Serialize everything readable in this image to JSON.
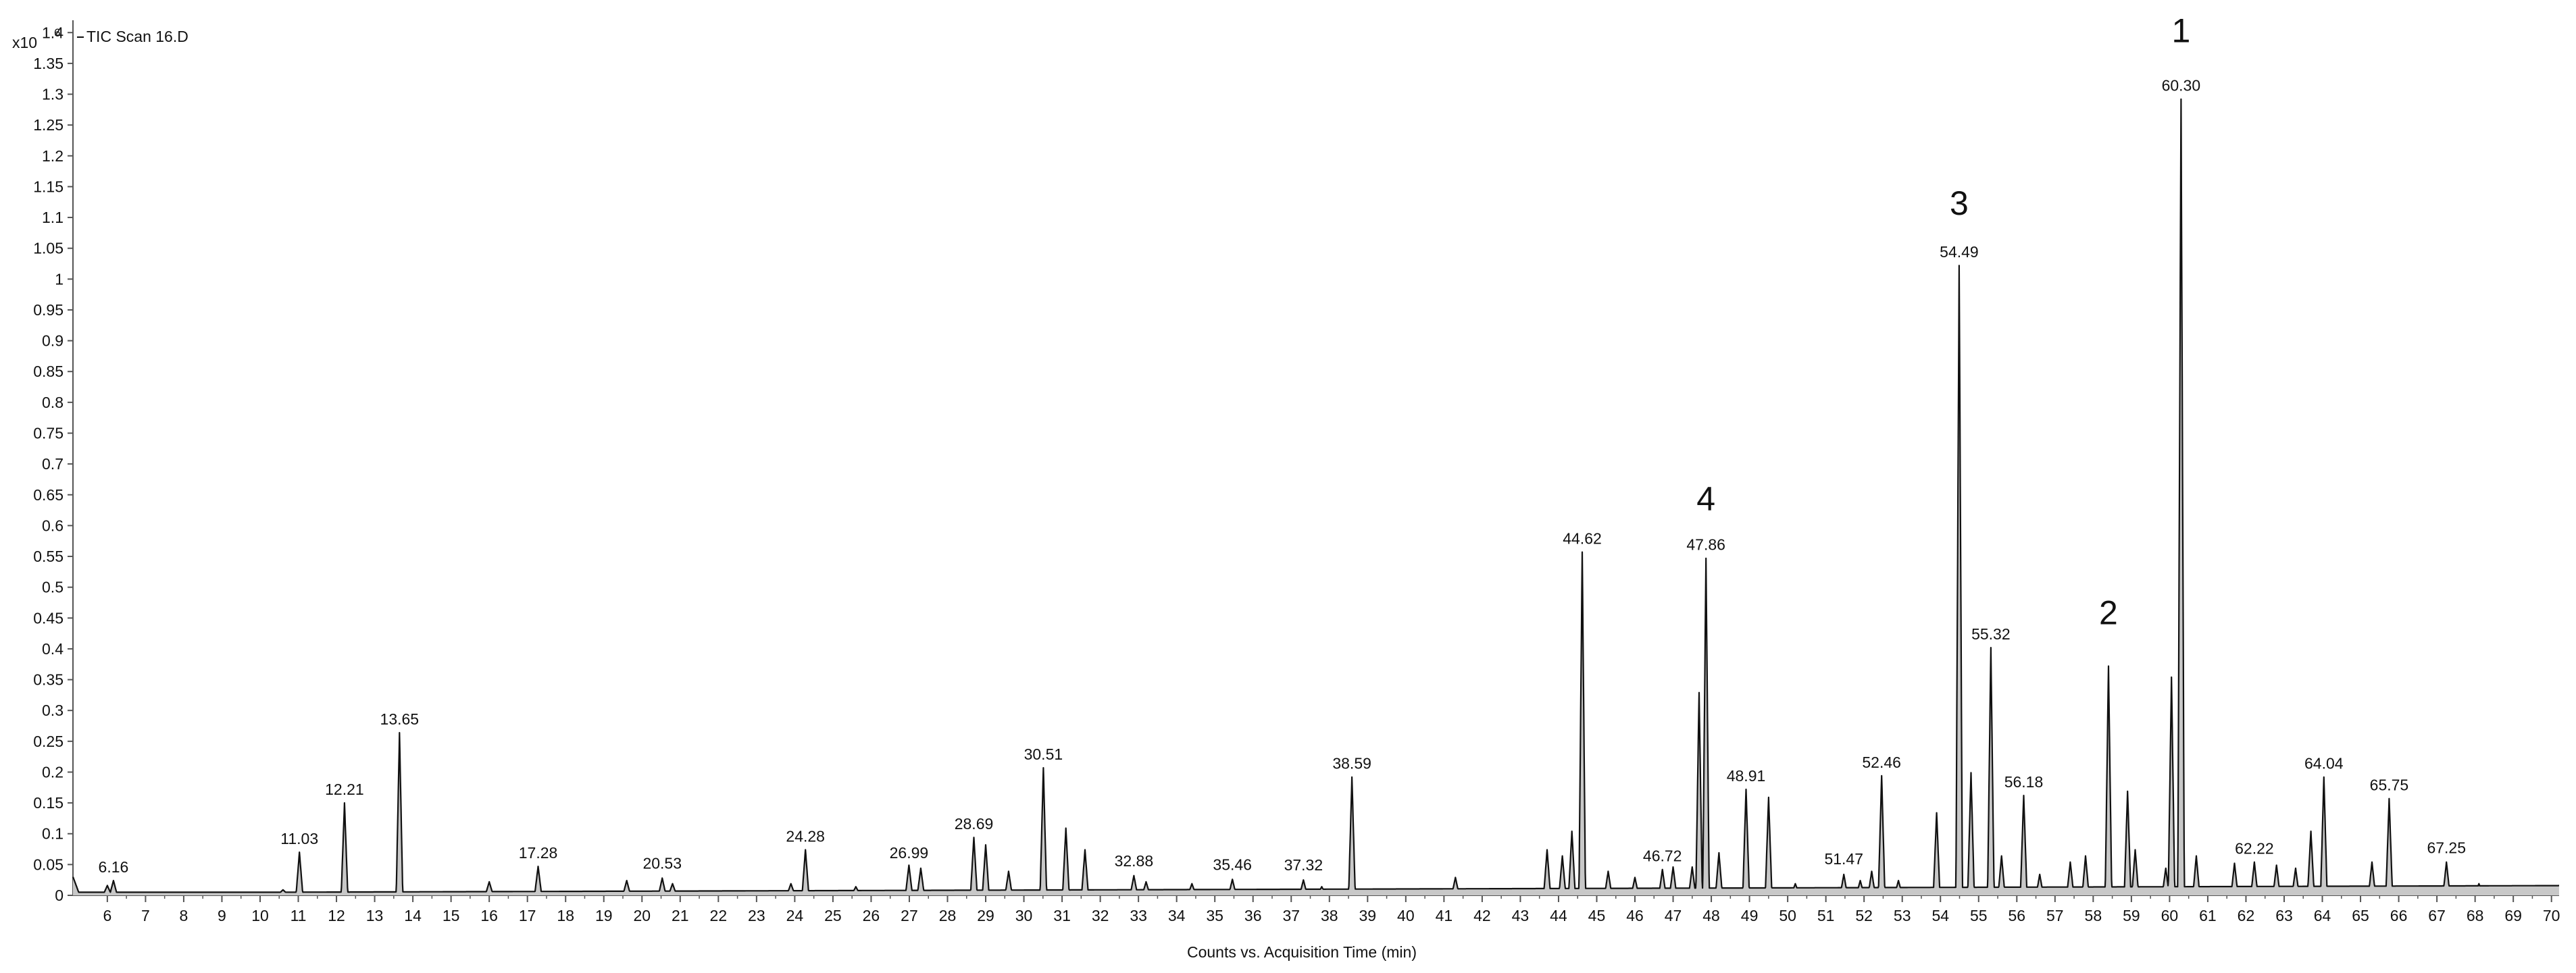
{
  "chart_data": {
    "type": "line",
    "trace_title": "TIC Scan 16.D",
    "xlabel": "Counts vs. Acquisition Time (min)",
    "y_scale_label": "x10",
    "y_scale_exponent": "6",
    "xlim": [
      5.1,
      70.2
    ],
    "ylim": [
      0,
      1.42
    ],
    "y_ticks": [
      "0",
      "0.05",
      "0.1",
      "0.15",
      "0.2",
      "0.25",
      "0.3",
      "0.35",
      "0.4",
      "0.45",
      "0.5",
      "0.55",
      "0.6",
      "0.65",
      "0.7",
      "0.75",
      "0.8",
      "0.85",
      "0.9",
      "0.95",
      "1",
      "1.05",
      "1.1",
      "1.15",
      "1.2",
      "1.25",
      "1.3",
      "1.35",
      "1.4"
    ],
    "x_ticks": [
      "6",
      "7",
      "8",
      "9",
      "10",
      "11",
      "12",
      "13",
      "14",
      "15",
      "16",
      "17",
      "18",
      "19",
      "20",
      "21",
      "22",
      "23",
      "24",
      "25",
      "26",
      "27",
      "28",
      "29",
      "30",
      "31",
      "32",
      "33",
      "34",
      "35",
      "36",
      "37",
      "38",
      "39",
      "40",
      "41",
      "42",
      "43",
      "44",
      "45",
      "46",
      "47",
      "48",
      "49",
      "50",
      "51",
      "52",
      "53",
      "54",
      "55",
      "56",
      "57",
      "58",
      "59",
      "60",
      "61",
      "62",
      "63",
      "64",
      "65",
      "66",
      "67",
      "68",
      "69",
      "70"
    ],
    "peak_labels": [
      {
        "label": "6.16",
        "x": 6.16,
        "y": 0.022
      },
      {
        "label": "11.03",
        "x": 11.03,
        "y": 0.068
      },
      {
        "label": "12.21",
        "x": 12.21,
        "y": 0.148
      },
      {
        "label": "13.65",
        "x": 13.65,
        "y": 0.262
      },
      {
        "label": "17.28",
        "x": 17.28,
        "y": 0.045
      },
      {
        "label": "20.53",
        "x": 20.53,
        "y": 0.028
      },
      {
        "label": "24.28",
        "x": 24.28,
        "y": 0.072
      },
      {
        "label": "26.99",
        "x": 26.99,
        "y": 0.045
      },
      {
        "label": "28.69",
        "x": 28.69,
        "y": 0.092
      },
      {
        "label": "30.51",
        "x": 30.51,
        "y": 0.205
      },
      {
        "label": "32.88",
        "x": 32.88,
        "y": 0.032
      },
      {
        "label": "35.46",
        "x": 35.46,
        "y": 0.026
      },
      {
        "label": "37.32",
        "x": 37.32,
        "y": 0.025
      },
      {
        "label": "38.59",
        "x": 38.59,
        "y": 0.19
      },
      {
        "label": "44.62",
        "x": 44.62,
        "y": 0.555
      },
      {
        "label": "46.72",
        "x": 46.72,
        "y": 0.04
      },
      {
        "label": "47.86",
        "x": 47.86,
        "y": 0.545
      },
      {
        "label": "48.91",
        "x": 48.91,
        "y": 0.17
      },
      {
        "label": "51.47",
        "x": 51.47,
        "y": 0.035
      },
      {
        "label": "52.46",
        "x": 52.46,
        "y": 0.192
      },
      {
        "label": "54.49",
        "x": 54.49,
        "y": 1.02
      },
      {
        "label": "55.32",
        "x": 55.32,
        "y": 0.4
      },
      {
        "label": "56.18",
        "x": 56.18,
        "y": 0.16
      },
      {
        "label": "60.30",
        "x": 60.3,
        "y": 1.29
      },
      {
        "label": "62.22",
        "x": 62.22,
        "y": 0.052
      },
      {
        "label": "64.04",
        "x": 64.04,
        "y": 0.19
      },
      {
        "label": "65.75",
        "x": 65.75,
        "y": 0.155
      },
      {
        "label": "67.25",
        "x": 67.25,
        "y": 0.053
      }
    ],
    "annotations": [
      {
        "label": "1",
        "x": 60.3,
        "y": 1.4
      },
      {
        "label": "2",
        "x": 58.4,
        "y": 0.455
      },
      {
        "label": "3",
        "x": 54.49,
        "y": 1.12
      },
      {
        "label": "4",
        "x": 47.86,
        "y": 0.64
      }
    ],
    "peaks": [
      {
        "t": 6.0,
        "h": 0.012
      },
      {
        "t": 6.16,
        "h": 0.02
      },
      {
        "t": 10.6,
        "h": 0.005
      },
      {
        "t": 11.03,
        "h": 0.066
      },
      {
        "t": 12.21,
        "h": 0.146
      },
      {
        "t": 13.65,
        "h": 0.26
      },
      {
        "t": 16.0,
        "h": 0.018
      },
      {
        "t": 17.28,
        "h": 0.043
      },
      {
        "t": 19.6,
        "h": 0.02
      },
      {
        "t": 20.53,
        "h": 0.024
      },
      {
        "t": 20.8,
        "h": 0.015
      },
      {
        "t": 23.9,
        "h": 0.015
      },
      {
        "t": 24.28,
        "h": 0.07
      },
      {
        "t": 25.6,
        "h": 0.01
      },
      {
        "t": 26.99,
        "h": 0.045
      },
      {
        "t": 27.3,
        "h": 0.04
      },
      {
        "t": 28.69,
        "h": 0.09
      },
      {
        "t": 29.0,
        "h": 0.078
      },
      {
        "t": 29.6,
        "h": 0.035
      },
      {
        "t": 30.51,
        "h": 0.203
      },
      {
        "t": 31.1,
        "h": 0.105
      },
      {
        "t": 31.6,
        "h": 0.07
      },
      {
        "t": 32.88,
        "h": 0.028
      },
      {
        "t": 33.2,
        "h": 0.018
      },
      {
        "t": 34.4,
        "h": 0.015
      },
      {
        "t": 35.46,
        "h": 0.022
      },
      {
        "t": 37.32,
        "h": 0.021
      },
      {
        "t": 37.8,
        "h": 0.01
      },
      {
        "t": 38.59,
        "h": 0.188
      },
      {
        "t": 41.3,
        "h": 0.025
      },
      {
        "t": 43.7,
        "h": 0.07
      },
      {
        "t": 44.1,
        "h": 0.06
      },
      {
        "t": 44.35,
        "h": 0.1
      },
      {
        "t": 44.62,
        "h": 0.553
      },
      {
        "t": 45.3,
        "h": 0.035
      },
      {
        "t": 46.0,
        "h": 0.025
      },
      {
        "t": 46.72,
        "h": 0.038
      },
      {
        "t": 47.0,
        "h": 0.042
      },
      {
        "t": 47.5,
        "h": 0.042
      },
      {
        "t": 47.68,
        "h": 0.325
      },
      {
        "t": 47.86,
        "h": 0.543
      },
      {
        "t": 48.2,
        "h": 0.065
      },
      {
        "t": 48.91,
        "h": 0.168
      },
      {
        "t": 49.5,
        "h": 0.155
      },
      {
        "t": 50.2,
        "h": 0.015
      },
      {
        "t": 51.47,
        "h": 0.03
      },
      {
        "t": 51.9,
        "h": 0.02
      },
      {
        "t": 52.2,
        "h": 0.035
      },
      {
        "t": 52.46,
        "h": 0.19
      },
      {
        "t": 52.9,
        "h": 0.02
      },
      {
        "t": 53.9,
        "h": 0.13
      },
      {
        "t": 54.49,
        "h": 1.018
      },
      {
        "t": 54.8,
        "h": 0.195
      },
      {
        "t": 55.32,
        "h": 0.398
      },
      {
        "t": 55.6,
        "h": 0.06
      },
      {
        "t": 56.18,
        "h": 0.158
      },
      {
        "t": 56.6,
        "h": 0.03
      },
      {
        "t": 57.4,
        "h": 0.05
      },
      {
        "t": 57.8,
        "h": 0.06
      },
      {
        "t": 58.4,
        "h": 0.368
      },
      {
        "t": 58.9,
        "h": 0.165
      },
      {
        "t": 59.1,
        "h": 0.07
      },
      {
        "t": 59.9,
        "h": 0.04
      },
      {
        "t": 60.05,
        "h": 0.35
      },
      {
        "t": 60.3,
        "h": 1.288
      },
      {
        "t": 60.7,
        "h": 0.06
      },
      {
        "t": 61.7,
        "h": 0.048
      },
      {
        "t": 62.22,
        "h": 0.05
      },
      {
        "t": 62.8,
        "h": 0.045
      },
      {
        "t": 63.3,
        "h": 0.04
      },
      {
        "t": 63.7,
        "h": 0.1
      },
      {
        "t": 64.04,
        "h": 0.188
      },
      {
        "t": 65.3,
        "h": 0.05
      },
      {
        "t": 65.75,
        "h": 0.153
      },
      {
        "t": 67.25,
        "h": 0.05
      },
      {
        "t": 68.1,
        "h": 0.015
      }
    ],
    "grid": false,
    "legend": "top-left"
  }
}
